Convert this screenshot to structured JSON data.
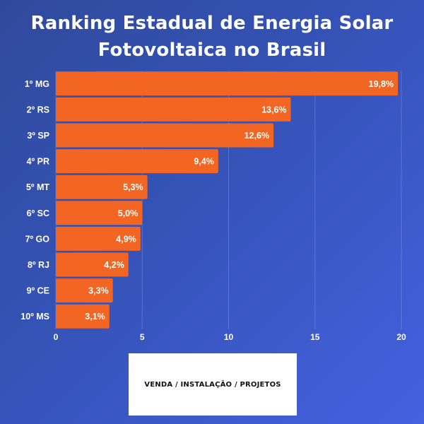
{
  "title_lines": [
    "Ranking Estadual de Energia Solar",
    "Fotovoltaica no Brasil"
  ],
  "chart_data": {
    "type": "bar",
    "orientation": "horizontal",
    "categories": [
      "1º MG",
      "2º RS",
      "3º SP",
      "4º PR",
      "5º MT",
      "6º SC",
      "7º GO",
      "8º RJ",
      "9º CE",
      "10º MS"
    ],
    "values": [
      19.8,
      13.6,
      12.6,
      9.4,
      5.3,
      5.0,
      4.9,
      4.2,
      3.3,
      3.1
    ],
    "value_labels": [
      "19,8%",
      "13,6%",
      "12,6%",
      "9,4%",
      "5,3%",
      "5,0%",
      "4,9%",
      "4,2%",
      "3,3%",
      "3,1%"
    ],
    "xlim": [
      0,
      20
    ],
    "x_ticks": [
      0,
      5,
      10,
      15,
      20
    ],
    "grid": true,
    "bar_color": "#f26522"
  },
  "footer": {
    "label": "VENDA / INSTALAÇÃO / PROJETOS"
  }
}
